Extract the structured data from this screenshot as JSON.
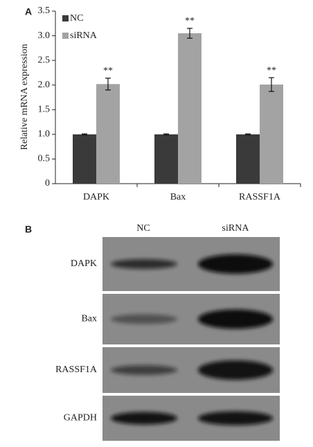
{
  "chart_data": {
    "type": "bar",
    "panel_label": "A",
    "ylabel": "Relative mRNA expression",
    "categories": [
      "DAPK",
      "Bax",
      "RASSF1A"
    ],
    "series": [
      {
        "name": "NC",
        "color": "#3a3a3a",
        "values": [
          1.0,
          1.0,
          1.0
        ],
        "errors": [
          0.01,
          0.01,
          0.01
        ]
      },
      {
        "name": "siRNA",
        "color": "#a3a3a3",
        "values": [
          2.02,
          3.05,
          2.01
        ],
        "errors": [
          0.12,
          0.1,
          0.14
        ],
        "annotations": [
          "**",
          "**",
          "**"
        ]
      }
    ],
    "ylim": [
      0,
      3.5
    ],
    "yticks": [
      0,
      0.5,
      {
        "value": 1,
        "label": "1.0"
      },
      1.5,
      {
        "value": 2,
        "label": "2.0"
      },
      2.5,
      {
        "value": 3,
        "label": "3.0"
      },
      3.5
    ],
    "legend": "top-left"
  },
  "blot": {
    "panel_label": "B",
    "columns": [
      "NC",
      "siRNA"
    ],
    "rows": [
      "DAPK",
      "Bax",
      "RASSF1A",
      "GAPDH"
    ]
  }
}
